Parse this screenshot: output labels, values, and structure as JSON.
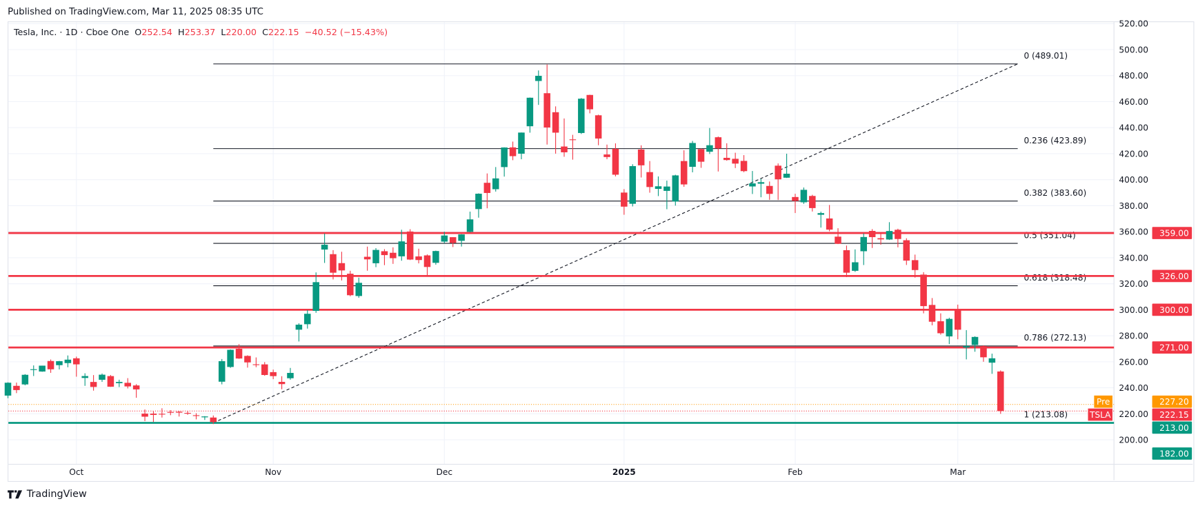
{
  "published": "Published on TradingView.com, Mar 11, 2025 08:35 UTC",
  "legend": {
    "symbol": "Tesla, Inc. · 1D · Cboe One",
    "o_label": "O",
    "o": "252.54",
    "h_label": "H",
    "h": "253.37",
    "l_label": "L",
    "l": "220.00",
    "c_label": "C",
    "c": "222.15",
    "change": "−40.52 (−15.43%)"
  },
  "logo": "TradingView",
  "colors": {
    "up": "#089981",
    "down": "#f23645",
    "pre": "#ff9800",
    "fib": "#131722",
    "grid": "#f0f3fa"
  },
  "chart_data": {
    "type": "candlestick",
    "ylim": [
      180,
      525
    ],
    "y_ticks": [
      "200.00",
      "220.00",
      "240.00",
      "260.00",
      "280.00",
      "300.00",
      "320.00",
      "340.00",
      "360.00",
      "380.00",
      "400.00",
      "420.00",
      "440.00",
      "460.00",
      "480.00",
      "500.00",
      "520.00"
    ],
    "x_ticks": [
      {
        "label": "Oct",
        "date": "2024-10-01"
      },
      {
        "label": "Nov",
        "date": "2024-11-01"
      },
      {
        "label": "Dec",
        "date": "2024-12-02"
      },
      {
        "label": "2025",
        "date": "2025-01-02",
        "bold": true
      },
      {
        "label": "Feb",
        "date": "2025-02-03"
      },
      {
        "label": "Mar",
        "date": "2025-03-03"
      }
    ],
    "candles": [
      [
        "2024-09-19",
        234,
        244.2,
        232,
        243.9
      ],
      [
        "2024-09-20",
        241.5,
        244,
        235.9,
        238.25
      ],
      [
        "2024-09-23",
        242.6,
        250.5,
        241.9,
        250
      ],
      [
        "2024-09-24",
        254.1,
        257.2,
        249.05,
        254.27
      ],
      [
        "2024-09-25",
        252.5,
        257.05,
        252.3,
        257.02
      ],
      [
        "2024-09-26",
        260.6,
        261.75,
        251.5,
        254.22
      ],
      [
        "2024-09-27",
        257.4,
        260.7,
        254.1,
        260.46
      ],
      [
        "2024-09-30",
        259,
        264.86,
        255.77,
        261.63
      ],
      [
        "2024-10-01",
        262.67,
        263.98,
        248.53,
        258.02
      ],
      [
        "2024-10-02",
        247.55,
        251.16,
        241.5,
        249.02
      ],
      [
        "2024-10-03",
        244.48,
        249.79,
        237.81,
        240.66
      ],
      [
        "2024-10-04",
        246.17,
        250.96,
        244.58,
        250.08
      ],
      [
        "2024-10-07",
        249,
        249.83,
        240.7,
        240.83
      ],
      [
        "2024-10-08",
        243.56,
        246.21,
        240.56,
        244.5
      ],
      [
        "2024-10-09",
        243.82,
        247.43,
        239.51,
        241.05
      ],
      [
        "2024-10-10",
        241.81,
        242.79,
        232.34,
        238.77
      ],
      [
        "2024-10-11",
        220.13,
        223.34,
        214.38,
        217.8
      ],
      [
        "2024-10-14",
        220.13,
        221.91,
        213.74,
        219.16
      ],
      [
        "2024-10-15",
        220.01,
        224.26,
        217.12,
        219.57
      ],
      [
        "2024-10-16",
        221.4,
        222.82,
        218.93,
        221.33
      ],
      [
        "2024-10-17",
        221.59,
        222.08,
        217.9,
        220.89
      ],
      [
        "2024-10-18",
        220.71,
        222.28,
        219.23,
        220.7
      ],
      [
        "2024-10-21",
        218.9,
        220.48,
        215.73,
        218.85
      ],
      [
        "2024-10-22",
        217.31,
        218.22,
        215.26,
        217.97
      ],
      [
        "2024-10-23",
        217.13,
        218.72,
        212.11,
        213.65
      ],
      [
        "2024-10-24",
        244.68,
        262.12,
        242.65,
        260.48
      ],
      [
        "2024-10-25",
        256.01,
        269.49,
        255.32,
        269.19
      ],
      [
        "2024-10-28",
        270,
        273.54,
        262.24,
        262.51
      ],
      [
        "2024-10-29",
        264.51,
        264.98,
        255.51,
        259.52
      ],
      [
        "2024-10-30",
        258.04,
        263.35,
        255.82,
        257.55
      ],
      [
        "2024-10-31",
        257.99,
        259.75,
        249.25,
        249.85
      ],
      [
        "2024-11-01",
        252.04,
        254,
        246.63,
        248.98
      ],
      [
        "2024-11-04",
        244.56,
        248.9,
        238.88,
        242.84
      ],
      [
        "2024-11-05",
        247.34,
        255.28,
        246.21,
        251.44
      ],
      [
        "2024-11-06",
        284.67,
        289.59,
        275.62,
        288.53
      ],
      [
        "2024-11-07",
        288.89,
        299.75,
        285.52,
        296.91
      ],
      [
        "2024-11-08",
        299.14,
        328.71,
        297.66,
        321.22
      ],
      [
        "2024-11-11",
        346.3,
        358.64,
        336,
        350
      ],
      [
        "2024-11-12",
        342.74,
        345.84,
        323.31,
        328.49
      ],
      [
        "2024-11-13",
        335.85,
        344.6,
        322.5,
        330.24
      ],
      [
        "2024-11-14",
        327.69,
        329.98,
        310.37,
        311.18
      ],
      [
        "2024-11-15",
        310.57,
        324.68,
        309.22,
        320.72
      ],
      [
        "2024-11-18",
        340.73,
        348.55,
        330.01,
        338.74
      ],
      [
        "2024-11-19",
        335.76,
        347.38,
        332.75,
        346
      ],
      [
        "2024-11-20",
        345,
        346.6,
        334.3,
        342.03
      ],
      [
        "2024-11-21",
        343.81,
        347.99,
        335.28,
        339.64
      ],
      [
        "2024-11-22",
        341.09,
        361.53,
        337.7,
        352.56
      ],
      [
        "2024-11-25",
        360.14,
        361.93,
        338.2,
        338.59
      ],
      [
        "2024-11-26",
        341,
        346.96,
        335.66,
        338.23
      ],
      [
        "2024-11-27",
        341.8,
        342.55,
        326.59,
        332.89
      ],
      [
        "2024-11-29",
        336.08,
        345.45,
        334.65,
        345.16
      ],
      [
        "2024-12-02",
        352.38,
        360,
        351.15,
        357.09
      ],
      [
        "2024-12-03",
        355.8,
        355.69,
        348.2,
        351.42
      ],
      [
        "2024-12-04",
        353,
        358.1,
        348.6,
        357.93
      ],
      [
        "2024-12-05",
        359.87,
        375.43,
        359.5,
        369.49
      ],
      [
        "2024-12-06",
        377.42,
        389.49,
        370.8,
        389.22
      ],
      [
        "2024-12-09",
        397.61,
        404.8,
        378.01,
        389.79
      ],
      [
        "2024-12-10",
        392.68,
        409.73,
        390.85,
        400.99
      ],
      [
        "2024-12-11",
        409.7,
        424.88,
        402.38,
        424.77
      ],
      [
        "2024-12-12",
        424.84,
        429.3,
        415,
        418.1
      ],
      [
        "2024-12-13",
        420,
        436.3,
        415.71,
        436.23
      ],
      [
        "2024-12-16",
        441.09,
        463.19,
        436.15,
        463.02
      ],
      [
        "2024-12-17",
        475.9,
        483.99,
        457.51,
        479.86
      ],
      [
        "2024-12-18",
        466.5,
        488.54,
        427.01,
        440.13
      ],
      [
        "2024-12-19",
        451.88,
        456.36,
        420.02,
        436.17
      ],
      [
        "2024-12-20",
        425.51,
        447.08,
        417.64,
        421.06
      ],
      [
        "2024-12-23",
        431,
        434.51,
        415.41,
        430.6
      ],
      [
        "2024-12-24",
        435.9,
        462.78,
        435.14,
        462.28
      ],
      [
        "2024-12-26",
        465.16,
        465.33,
        451.02,
        454.13
      ],
      [
        "2024-12-27",
        449.52,
        450,
        426.5,
        431.66
      ],
      [
        "2024-12-30",
        419.4,
        427,
        415.75,
        417.41
      ],
      [
        "2024-12-31",
        423.79,
        427.93,
        402.54,
        403.84
      ],
      [
        "2025-01-02",
        390.1,
        392.73,
        373.04,
        379.28
      ],
      [
        "2025-01-03",
        381.48,
        411.88,
        379.45,
        410.44
      ],
      [
        "2025-01-06",
        423.2,
        426.43,
        401.7,
        411.05
      ],
      [
        "2025-01-07",
        405.83,
        414.33,
        390,
        394.36
      ],
      [
        "2025-01-08",
        392.95,
        402.5,
        387.4,
        394.94
      ],
      [
        "2025-01-10",
        391.4,
        399.28,
        377.29,
        394.74
      ],
      [
        "2025-01-13",
        383.21,
        403.79,
        380.07,
        403.31
      ],
      [
        "2025-01-14",
        414.34,
        422.64,
        394.54,
        396.36
      ],
      [
        "2025-01-15",
        409.9,
        429.8,
        405.66,
        428.22
      ],
      [
        "2025-01-16",
        423.49,
        424,
        409.13,
        413.82
      ],
      [
        "2025-01-17",
        421.5,
        439.74,
        419.75,
        426.5
      ],
      [
        "2025-01-21",
        432.64,
        433.2,
        406.31,
        424.07
      ],
      [
        "2025-01-22",
        416.81,
        428,
        414.59,
        415.11
      ],
      [
        "2025-01-23",
        416.06,
        420.73,
        408.95,
        412.38
      ],
      [
        "2025-01-24",
        414.45,
        418.88,
        405.78,
        406.58
      ],
      [
        "2025-01-27",
        394.8,
        406.69,
        389,
        397.15
      ],
      [
        "2025-01-28",
        396.91,
        400.59,
        386.5,
        398.09
      ],
      [
        "2025-01-29",
        395.21,
        398.59,
        384.48,
        389.1
      ],
      [
        "2025-01-30",
        410.78,
        412.5,
        384.41,
        400.28
      ],
      [
        "2025-01-31",
        401.53,
        419.99,
        401.34,
        404.6
      ],
      [
        "2025-02-03",
        386.68,
        389.17,
        374.36,
        383.68
      ],
      [
        "2025-02-04",
        382.63,
        394,
        381.4,
        392.21
      ],
      [
        "2025-02-05",
        387.51,
        388.39,
        375.53,
        378.17
      ],
      [
        "2025-02-06",
        373.03,
        375.4,
        363.18,
        374.32
      ],
      [
        "2025-02-07",
        370.19,
        380.55,
        360.34,
        361.62
      ],
      [
        "2025-02-10",
        356.21,
        362.7,
        350.51,
        350.73
      ],
      [
        "2025-02-11",
        345.8,
        349.37,
        325.1,
        328.5
      ],
      [
        "2025-02-12",
        329.94,
        346.4,
        329.12,
        336.51
      ],
      [
        "2025-02-13",
        345,
        358.69,
        334.39,
        355.94
      ],
      [
        "2025-02-14",
        360.62,
        362,
        347.5,
        355.84
      ],
      [
        "2025-02-18",
        355.01,
        359.1,
        350.02,
        354.11
      ],
      [
        "2025-02-19",
        354,
        367.34,
        353.67,
        360.56
      ],
      [
        "2025-02-20",
        361.51,
        362.3,
        348,
        354.4
      ],
      [
        "2025-02-21",
        353.44,
        354.98,
        334.42,
        337.8
      ],
      [
        "2025-02-24",
        338.14,
        342.4,
        324.7,
        330.53
      ],
      [
        "2025-02-25",
        327.02,
        328.89,
        297.25,
        302.8
      ],
      [
        "2025-02-26",
        303.71,
        309,
        288.04,
        290.8
      ],
      [
        "2025-02-27",
        291.16,
        297.23,
        280.88,
        281.95
      ],
      [
        "2025-02-28",
        279.5,
        293.88,
        273.6,
        292.98
      ],
      [
        "2025-03-03",
        300.34,
        303.94,
        277.3,
        284.65
      ],
      [
        "2025-03-04",
        270.93,
        284.35,
        261.84,
        272.04
      ],
      [
        "2025-03-05",
        272.92,
        279.55,
        267.71,
        279.1
      ],
      [
        "2025-03-06",
        272.06,
        272.65,
        260.02,
        263.45
      ],
      [
        "2025-03-07",
        259.32,
        266.25,
        250.73,
        262.67
      ],
      [
        "2025-03-10",
        252.54,
        253.37,
        220,
        222.15
      ]
    ],
    "fib_levels": [
      {
        "label": "0 (489.01)",
        "price": 489.01
      },
      {
        "label": "0.236 (423.89)",
        "price": 423.89
      },
      {
        "label": "0.382 (383.60)",
        "price": 383.6
      },
      {
        "label": "0.5 (351.04)",
        "price": 351.04
      },
      {
        "label": "0.618 (318.48)",
        "price": 318.48
      },
      {
        "label": "0.786 (272.13)",
        "price": 272.13
      },
      {
        "label": "1 (213.08)",
        "price": 213.08
      }
    ],
    "fib_start_date": "2024-10-23",
    "trend_line": [
      [
        "2024-10-23",
        213.08
      ],
      [
        "2025-03-12",
        489.01
      ]
    ],
    "horizontal_levels": [
      {
        "price": 359,
        "label": "359.00",
        "color": "#f23645"
      },
      {
        "price": 326,
        "label": "326.00",
        "color": "#f23645"
      },
      {
        "price": 300,
        "label": "300.00",
        "color": "#f23645"
      },
      {
        "price": 271,
        "label": "271.00",
        "color": "#f23645"
      },
      {
        "price": 213,
        "label": "213.00",
        "color": "#089981"
      }
    ],
    "extra_badge": {
      "label": "182.00",
      "color": "#089981"
    },
    "premarket": {
      "tag": "Pre",
      "price": 227.2,
      "label": "227.20"
    },
    "last": {
      "tag": "TSLA",
      "price": 222.15,
      "label": "222.15"
    }
  }
}
